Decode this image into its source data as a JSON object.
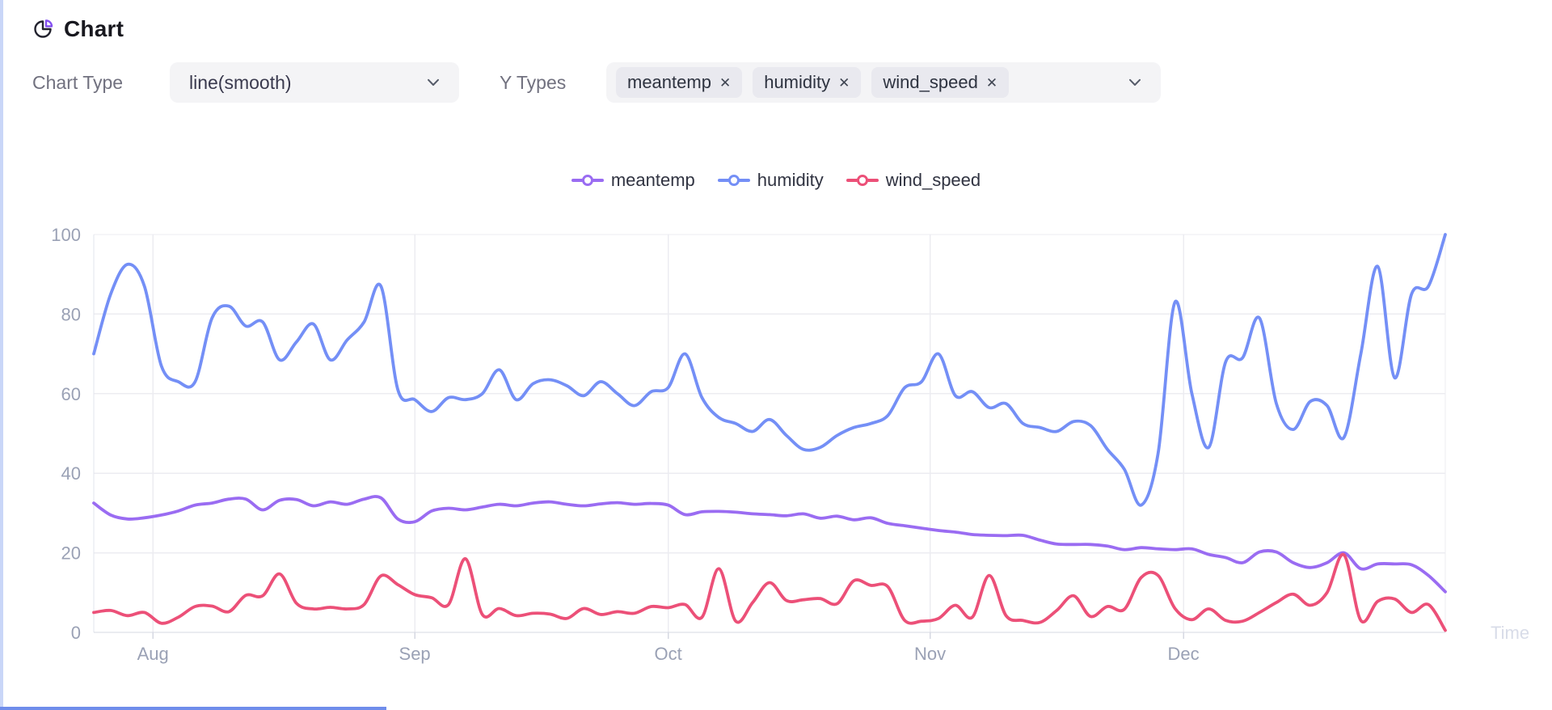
{
  "header": {
    "title": "Chart"
  },
  "controls": {
    "chart_type": {
      "label": "Chart Type",
      "value": "line(smooth)"
    },
    "y_types": {
      "label": "Y Types",
      "selected": [
        "meantemp",
        "humidity",
        "wind_speed"
      ],
      "remove_glyph": "✕"
    }
  },
  "chart_data": {
    "type": "line",
    "smooth": true,
    "title": "",
    "xlabel": "Time",
    "ylabel": "",
    "ylim": [
      0,
      100
    ],
    "yticks": [
      0,
      20,
      40,
      60,
      80,
      100
    ],
    "grid": true,
    "legend_position": "top-center",
    "x_interval_days": 2,
    "x_total_days": 160,
    "month_ticks": [
      {
        "label": "Aug",
        "day": 7
      },
      {
        "label": "Sep",
        "day": 38
      },
      {
        "label": "Oct",
        "day": 68
      },
      {
        "label": "Nov",
        "day": 99
      },
      {
        "label": "Dec",
        "day": 129
      }
    ],
    "series": [
      {
        "name": "meantemp",
        "color": "#9a6cf2",
        "values": [
          32.5,
          29.5,
          28.5,
          28.8,
          29.5,
          30.5,
          32,
          32.5,
          33.5,
          33.5,
          30.8,
          33.2,
          33.4,
          31.8,
          32.8,
          32.2,
          33.5,
          33.8,
          28.5,
          27.8,
          30.5,
          31.2,
          30.8,
          31.5,
          32.2,
          31.8,
          32.5,
          32.8,
          32.2,
          31.8,
          32.3,
          32.6,
          32.2,
          32.4,
          32.0,
          29.6,
          30.3,
          30.4,
          30.2,
          29.8,
          29.6,
          29.3,
          29.8,
          28.7,
          29.2,
          28.3,
          28.8,
          27.4,
          26.8,
          26.2,
          25.6,
          25.2,
          24.6,
          24.4,
          24.3,
          24.4,
          23.2,
          22.2,
          22.1,
          22.1,
          21.7,
          20.8,
          21.3,
          21.0,
          20.8,
          21.0,
          19.6,
          18.8,
          17.5,
          20.2,
          20.2,
          17.5,
          16.3,
          17.5,
          20.0,
          16.0,
          17.2,
          17.2,
          17.0,
          14.3,
          10.2
        ]
      },
      {
        "name": "humidity",
        "color": "#748ff6",
        "values": [
          70,
          85,
          92.5,
          87,
          67,
          63,
          63,
          79,
          82,
          77,
          78,
          68.5,
          73,
          77.5,
          68.5,
          73.5,
          78,
          87,
          61,
          58.5,
          55.5,
          59,
          58.5,
          60,
          66,
          58.5,
          62.5,
          63.5,
          62,
          59.5,
          63,
          60,
          57,
          60.5,
          61.5,
          70,
          59,
          54,
          52.5,
          50.5,
          53.5,
          49.5,
          46,
          46.5,
          49.5,
          51.5,
          52.5,
          54.5,
          61.5,
          63,
          70,
          59.5,
          60.5,
          56.5,
          57.5,
          52.5,
          51.5,
          50.5,
          53,
          52,
          46,
          41,
          32,
          45,
          83,
          60,
          46.5,
          68,
          69,
          79,
          57.5,
          51,
          58,
          57,
          49,
          70,
          92,
          64,
          85,
          87,
          100
        ]
      },
      {
        "name": "wind_speed",
        "color": "#ec5078",
        "values": [
          5.0,
          5.5,
          4.2,
          5.0,
          2.3,
          3.8,
          6.5,
          6.6,
          5.2,
          9.3,
          9.2,
          14.7,
          7.3,
          5.9,
          6.3,
          5.9,
          7.0,
          14.2,
          12.0,
          9.5,
          8.7,
          7.0,
          18.5,
          4.5,
          6.0,
          4.2,
          4.8,
          4.6,
          3.5,
          6.0,
          4.5,
          5.2,
          4.8,
          6.5,
          6.2,
          7.0,
          3.8,
          16.0,
          2.8,
          7.5,
          12.5,
          8.0,
          8.2,
          8.5,
          7.2,
          13.0,
          11.8,
          11.5,
          3.0,
          2.8,
          3.5,
          6.8,
          3.8,
          14.3,
          4.2,
          3.0,
          2.5,
          5.5,
          9.2,
          4.0,
          6.5,
          5.8,
          13.8,
          14.3,
          6.0,
          3.2,
          5.9,
          3.0,
          2.8,
          5.0,
          7.5,
          9.6,
          6.8,
          10.0,
          19.5,
          3.0,
          7.8,
          8.4,
          5.0,
          7.0,
          0.5
        ]
      }
    ]
  }
}
